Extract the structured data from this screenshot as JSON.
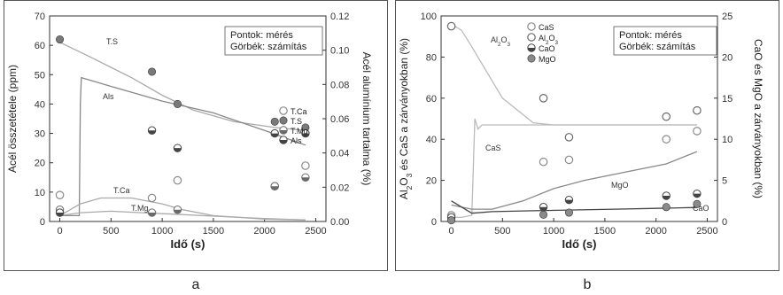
{
  "chart_data": [
    {
      "type": "scatter",
      "panel_label": "a",
      "xlabel": "Idő (s)",
      "ylabel": "Acél összetétele (ppm)",
      "y2label": "Acél alumínium tartalma (%)",
      "xlim": [
        -100,
        2600
      ],
      "ylim": [
        0,
        70
      ],
      "y2lim": [
        0,
        0.12
      ],
      "xticks": [
        0,
        500,
        1000,
        1500,
        2000,
        2500
      ],
      "yticks": [
        0,
        10,
        20,
        30,
        40,
        50,
        60,
        70
      ],
      "y2ticks": [
        "0.00",
        "0.02",
        "0.04",
        "0.06",
        "0.08",
        "0.10",
        "0.12"
      ],
      "note_lines": [
        "Pontok: mérés",
        "Görbék: számítás"
      ],
      "legend_position": "right-middle",
      "series": [
        {
          "name": "T.Ca",
          "marker": "open",
          "color": "#8a8a8a",
          "x": [
            0,
            900,
            1150,
            2100,
            2400
          ],
          "y": [
            9,
            8,
            14,
            12,
            19
          ]
        },
        {
          "name": "T.S",
          "marker": "filled",
          "color": "#7a7a7a",
          "x": [
            0,
            900,
            1150,
            2100,
            2400
          ],
          "y": [
            62,
            51,
            40,
            34,
            32
          ]
        },
        {
          "name": "T.Mg",
          "marker": "half",
          "color": "#6a6a6a",
          "x": [
            0,
            900,
            1150,
            2100,
            2400
          ],
          "y": [
            4,
            3,
            4,
            12,
            15
          ]
        },
        {
          "name": "Als",
          "marker": "half",
          "color": "#444444",
          "x": [
            0,
            900,
            1150,
            2100,
            2400
          ],
          "y": [
            3,
            31,
            25,
            30,
            30
          ]
        }
      ],
      "curves": [
        {
          "label": "T.S",
          "color": "#aaaaaa",
          "x": [
            0,
            300,
            700,
            1000,
            1300,
            1700,
            2100,
            2400
          ],
          "y": [
            61,
            56,
            49,
            43,
            38,
            34,
            32,
            31
          ]
        },
        {
          "label": "Als",
          "color": "#888888",
          "x": [
            0,
            190,
            200,
            210,
            500,
            1000,
            1500,
            2000,
            2400
          ],
          "y": [
            2,
            2,
            40,
            49,
            46,
            41,
            37,
            31,
            26
          ]
        },
        {
          "label": "T.Ca",
          "color": "#aaaaaa",
          "x": [
            0,
            200,
            400,
            700,
            1000,
            1200,
            1500,
            2000,
            2400
          ],
          "y": [
            2,
            6,
            8,
            8,
            6,
            4,
            2,
            0.8,
            0.5
          ]
        },
        {
          "label": "T.Mg",
          "color": "#aaaaaa",
          "x": [
            0,
            200,
            500,
            800,
            1100,
            1500,
            2000,
            2400
          ],
          "y": [
            2,
            3,
            3.5,
            3,
            2.5,
            1.8,
            1,
            0.5
          ]
        }
      ]
    },
    {
      "type": "scatter",
      "panel_label": "b",
      "xlabel": "Idő (s)",
      "ylabel": "Al2O3 és CaS a zárványokban (%)",
      "y2label": "CaO és MgO a zárványokban (%)",
      "xlim": [
        -100,
        2600
      ],
      "ylim": [
        0,
        100
      ],
      "y2lim": [
        0,
        25
      ],
      "xticks": [
        0,
        500,
        1000,
        1500,
        2000,
        2500
      ],
      "yticks": [
        0,
        20,
        40,
        60,
        80,
        100
      ],
      "y2ticks": [
        0,
        5,
        10,
        15,
        20,
        25
      ],
      "note_lines": [
        "Pontok: mérés",
        "Görbék: számítás"
      ],
      "legend_position": "top-left",
      "series": [
        {
          "name": "CaS",
          "marker": "open",
          "color": "#8a8a8a",
          "x": [
            0,
            900,
            1150,
            2100,
            2400
          ],
          "y": [
            3,
            29,
            30,
            40,
            44
          ]
        },
        {
          "name": "Al2O3",
          "marker": "open",
          "color": "#6a6a6a",
          "x": [
            0,
            900,
            1150,
            2100,
            2400
          ],
          "y": [
            95,
            60,
            41,
            51,
            54
          ]
        },
        {
          "name": "CaO",
          "marker": "half",
          "color": "#444444",
          "x": [
            0,
            900,
            1150,
            2100,
            2400
          ],
          "y": [
            2,
            7,
            10.5,
            12.5,
            13.5
          ]
        },
        {
          "name": "MgO",
          "marker": "filled",
          "color": "#8a8a8a",
          "x": [
            0,
            900,
            1150,
            2100,
            2400
          ],
          "y": [
            0.6,
            3.3,
            4.3,
            7,
            8.5
          ]
        }
      ],
      "curves": [
        {
          "label": "Al2O3",
          "axis": "y",
          "color": "#bbbbbb",
          "x": [
            0,
            100,
            200,
            260,
            500,
            800,
            1000,
            1500,
            2000,
            2400
          ],
          "y": [
            96,
            93,
            85,
            80,
            60,
            48,
            47,
            47,
            47,
            47
          ]
        },
        {
          "label": "CaS",
          "axis": "y",
          "color": "#bbbbbb",
          "x": [
            0,
            100,
            200,
            230,
            260,
            300,
            700,
            1000,
            1500,
            2000,
            2400
          ],
          "y": [
            2,
            2,
            3,
            50,
            45,
            47,
            47,
            47,
            47,
            47,
            47
          ]
        },
        {
          "label": "MgO",
          "axis": "y2",
          "color": "#888888",
          "x": [
            0,
            200,
            400,
            700,
            1000,
            1300,
            1700,
            2100,
            2400
          ],
          "y": [
            2,
            1.5,
            1.5,
            2.5,
            4,
            5,
            6,
            7,
            8.5
          ]
        },
        {
          "label": "CaO",
          "axis": "y2",
          "color": "#444444",
          "x": [
            0,
            200,
            400,
            800,
            1200,
            1600,
            2000,
            2400
          ],
          "y": [
            2.5,
            1,
            1.2,
            1.3,
            1.4,
            1.5,
            1.6,
            1.7
          ]
        }
      ]
    }
  ]
}
